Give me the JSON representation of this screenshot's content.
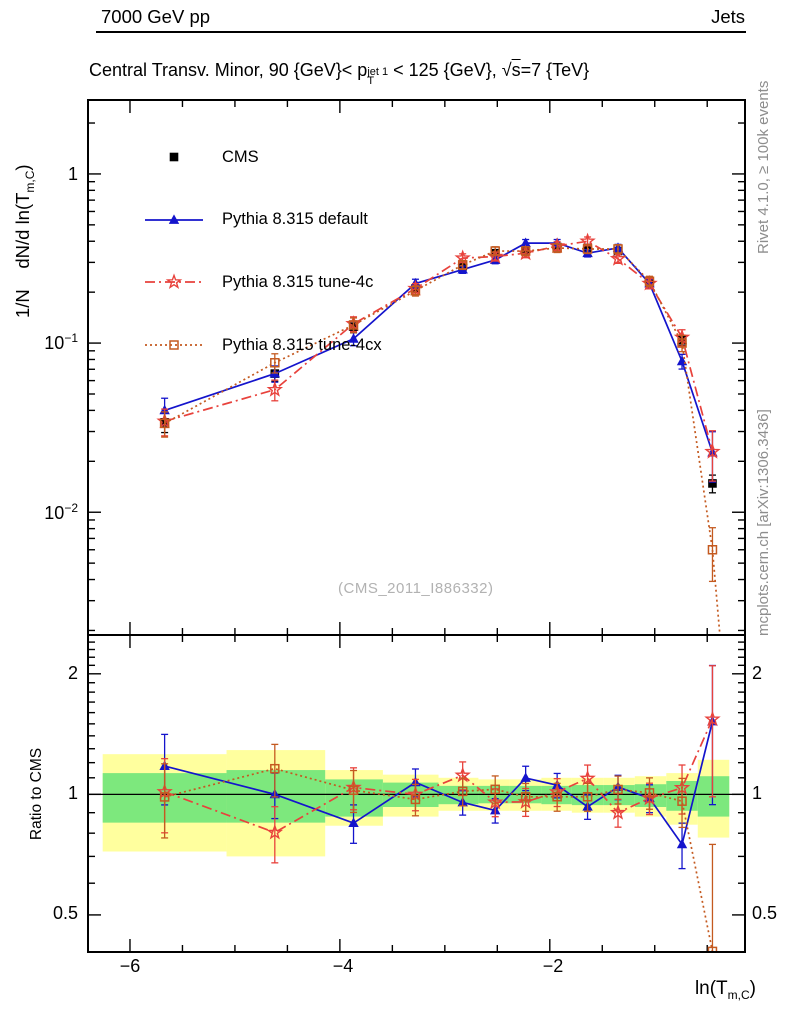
{
  "header": {
    "beam": "7000 GeV pp",
    "analysis": "Jets"
  },
  "title": {
    "p1": "Central Transv. Minor, 90 {GeV}< p",
    "sup": "jet 1",
    "sub": "T",
    "p2": " < 125 {GeV}, ",
    "sqrt": "√",
    "sbar": "s",
    "p3": "=7 {TeV}"
  },
  "axes": {
    "ylabel_main": {
      "p1": "1/N    dN/d ln(T",
      "sub": "m,C",
      "p2": ")"
    },
    "ylabel_ratio": "Ratio to CMS",
    "xlabel": {
      "p1": "ln(T",
      "sub": "m,C",
      "p2": ")"
    },
    "main_y_ticks": [
      {
        "base": "1",
        "exp": ""
      },
      {
        "base": "10",
        "exp": "−1"
      },
      {
        "base": "10",
        "exp": "−2"
      }
    ],
    "ratio_y_ticks": [
      "2",
      "1",
      "0.5"
    ],
    "x_ticks": [
      "−6",
      "−4",
      "−2"
    ]
  },
  "legend": [
    {
      "label": "CMS",
      "marker": "square-filled",
      "color": "#000000",
      "line": "none"
    },
    {
      "label": "Pythia 8.315 default",
      "marker": "triangle-filled",
      "color": "#1414cc",
      "line": "solid"
    },
    {
      "label": "Pythia 8.315 tune-4c",
      "marker": "star-open",
      "color": "#e8423c",
      "line": "dashdot"
    },
    {
      "label": "Pythia 8.315 tune-4cx",
      "marker": "square-open",
      "color": "#c45a20",
      "line": "dotted"
    }
  ],
  "watermark": "(CMS_2011_I886332)",
  "credits": {
    "top": "Rivet 4.1.0, ≥ 100k events",
    "bottom": "mcplots.cern.ch [arXiv:1306.3436]"
  },
  "chart_data": {
    "type": "line",
    "title": "Central Transv. Minor, 90 {GeV}< pT^jet1 < 125 {GeV}, sqrt(s)=7 {TeV}",
    "xlabel": "ln(T_m,C)",
    "ylabel": "1/N dN/d ln(T_m,C)",
    "x_range": [
      -6.4,
      -0.14
    ],
    "y_range_main": [
      0.00188,
      2.736
    ],
    "y_range_ratio": [
      0.404,
      2.5
    ],
    "x_major_ticks": [
      -6,
      -4,
      -2
    ],
    "x_minor_step": 0.5,
    "colors": {
      "cms": "#000000",
      "default": "#1414cc",
      "tune4c": "#e8423c",
      "tune4cx": "#c45a20",
      "band_yellow": "#ffff9e",
      "band_green": "#7de87d"
    },
    "x": [
      -5.67,
      -4.62,
      -3.87,
      -3.28,
      -2.83,
      -2.52,
      -2.23,
      -1.93,
      -1.64,
      -1.35,
      -1.05,
      -0.74,
      -0.45
    ],
    "series": [
      {
        "name": "CMS",
        "key": "cms",
        "marker": "square-filled",
        "line": "none",
        "values": [
          0.034,
          0.066,
          0.125,
          0.21,
          0.285,
          0.34,
          0.355,
          0.37,
          0.365,
          0.35,
          0.23,
          0.104,
          0.0148
        ],
        "yerr_rel": [
          0.13,
          0.1,
          0.08,
          0.05,
          0.04,
          0.04,
          0.04,
          0.04,
          0.04,
          0.04,
          0.05,
          0.07,
          0.12
        ]
      },
      {
        "name": "Pythia 8.315 default",
        "key": "default",
        "marker": "triangle-filled",
        "line": "solid",
        "values": [
          0.04,
          0.066,
          0.106,
          0.225,
          0.272,
          0.31,
          0.39,
          0.39,
          0.34,
          0.365,
          0.225,
          0.078,
          0.0225
        ],
        "yerr_rel": [
          0.18,
          0.11,
          0.09,
          0.06,
          0.05,
          0.05,
          0.05,
          0.05,
          0.05,
          0.05,
          0.06,
          0.1,
          0.33
        ],
        "ratio_err_rel": [
          0.2,
          0.13,
          0.11,
          0.08,
          0.07,
          0.07,
          0.07,
          0.07,
          0.07,
          0.07,
          0.08,
          0.13,
          0.38
        ]
      },
      {
        "name": "Pythia 8.315 tune-4c",
        "key": "tune4c",
        "marker": "star-open",
        "line": "dashdot",
        "values": [
          0.0345,
          0.053,
          0.13,
          0.21,
          0.318,
          0.325,
          0.34,
          0.375,
          0.4,
          0.315,
          0.225,
          0.108,
          0.0228
        ],
        "yerr_rel": [
          0.18,
          0.14,
          0.1,
          0.07,
          0.06,
          0.06,
          0.06,
          0.06,
          0.06,
          0.06,
          0.07,
          0.11,
          0.33
        ],
        "ratio_err_rel": [
          0.21,
          0.16,
          0.12,
          0.09,
          0.08,
          0.08,
          0.08,
          0.08,
          0.08,
          0.08,
          0.09,
          0.14,
          0.36
        ]
      },
      {
        "name": "Pythia 8.315 tune-4cx",
        "key": "tune4cx",
        "marker": "square-open",
        "line": "dotted",
        "values": [
          0.0335,
          0.0765,
          0.128,
          0.204,
          0.29,
          0.35,
          0.35,
          0.365,
          0.36,
          0.36,
          0.232,
          0.1,
          0.006
        ],
        "yerr_rel": [
          0.17,
          0.13,
          0.1,
          0.07,
          0.06,
          0.06,
          0.06,
          0.06,
          0.06,
          0.06,
          0.07,
          0.11,
          0.35
        ],
        "ratio_err_rel": [
          0.21,
          0.15,
          0.12,
          0.09,
          0.08,
          0.08,
          0.08,
          0.08,
          0.08,
          0.08,
          0.09,
          0.14,
          0.85
        ],
        "line_extension": {
          "x": -0.38,
          "v": 0.0019
        }
      }
    ],
    "ratio_bands": {
      "bin_edges": [
        -6.26,
        -5.08,
        -4.14,
        -3.59,
        -3.06,
        -2.68,
        -2.38,
        -2.08,
        -1.79,
        -1.49,
        -1.19,
        -0.89,
        -0.59,
        -0.29
      ],
      "yellow": [
        [
          0.72,
          1.26
        ],
        [
          0.7,
          1.29
        ],
        [
          0.835,
          1.15
        ],
        [
          0.88,
          1.12
        ],
        [
          0.91,
          1.1
        ],
        [
          0.91,
          1.09
        ],
        [
          0.91,
          1.09
        ],
        [
          0.91,
          1.1
        ],
        [
          0.9,
          1.1
        ],
        [
          0.9,
          1.1
        ],
        [
          0.88,
          1.11
        ],
        [
          0.84,
          1.13
        ],
        [
          0.78,
          1.22
        ]
      ],
      "green": [
        [
          0.85,
          1.13
        ],
        [
          0.85,
          1.15
        ],
        [
          0.88,
          1.09
        ],
        [
          0.93,
          1.07
        ],
        [
          0.945,
          1.05
        ],
        [
          0.95,
          1.05
        ],
        [
          0.95,
          1.05
        ],
        [
          0.945,
          1.05
        ],
        [
          0.94,
          1.055
        ],
        [
          0.94,
          1.055
        ],
        [
          0.93,
          1.06
        ],
        [
          0.91,
          1.08
        ],
        [
          0.88,
          1.11
        ]
      ]
    },
    "legend_position": "top-left",
    "grid": false
  }
}
